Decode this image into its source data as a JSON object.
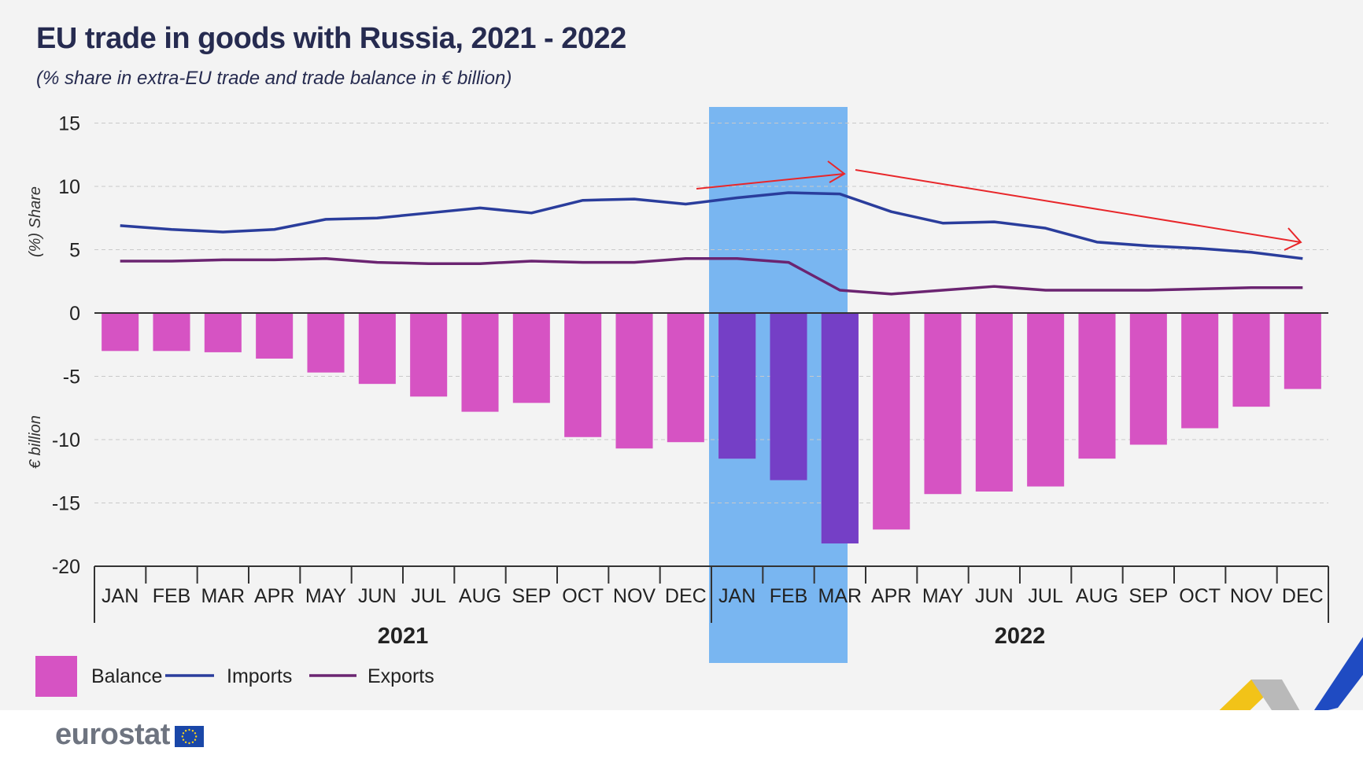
{
  "header": {
    "title": "EU trade in goods with Russia, 2021 - 2022",
    "subtitle": "(% share in extra-EU trade and trade balance in € billion)"
  },
  "footer": {
    "logo_text": "eurostat"
  },
  "chart_data": {
    "type": "bar+line",
    "categories": [
      "JAN",
      "FEB",
      "MAR",
      "APR",
      "MAY",
      "JUN",
      "JUL",
      "AUG",
      "SEP",
      "OCT",
      "NOV",
      "DEC",
      "JAN",
      "FEB",
      "MAR",
      "APR",
      "MAY",
      "JUN",
      "JUL",
      "AUG",
      "SEP",
      "OCT",
      "NOV",
      "DEC"
    ],
    "years": [
      "2021",
      "2022"
    ],
    "ylabel_top": "(%) Share",
    "ylabel_bottom": "€ billion",
    "ylim": [
      -20,
      15
    ],
    "yticks": [
      "15",
      "10",
      "5",
      "0",
      "-5",
      "-10",
      "-15",
      "-20"
    ],
    "grid": true,
    "highlight_range": [
      "JAN 2022",
      "MAR 2022"
    ],
    "series": [
      {
        "name": "Balance",
        "type": "bar",
        "color": "#d653c3",
        "values": [
          -3.0,
          -3.0,
          -3.1,
          -3.6,
          -4.7,
          -5.6,
          -6.6,
          -7.8,
          -7.1,
          -9.8,
          -10.7,
          -10.2,
          -11.5,
          -13.2,
          -18.2,
          -17.1,
          -14.3,
          -14.1,
          -13.7,
          -11.5,
          -10.4,
          -9.1,
          -7.4,
          -6.0
        ]
      },
      {
        "name": "Imports",
        "type": "line",
        "color": "#2a3d9c",
        "values": [
          6.9,
          6.6,
          6.4,
          6.6,
          7.4,
          7.5,
          7.9,
          8.3,
          7.9,
          8.9,
          9.0,
          8.6,
          9.1,
          9.5,
          9.4,
          8.0,
          7.1,
          7.2,
          6.7,
          5.6,
          5.3,
          5.1,
          4.8,
          4.3
        ]
      },
      {
        "name": "Exports",
        "type": "line",
        "color": "#6b2471",
        "values": [
          4.1,
          4.1,
          4.2,
          4.2,
          4.3,
          4.0,
          3.9,
          3.9,
          4.1,
          4.0,
          4.0,
          4.3,
          4.3,
          4.0,
          1.8,
          1.5,
          1.8,
          2.1,
          1.8,
          1.8,
          1.8,
          1.9,
          2.0,
          2.0
        ]
      }
    ],
    "legend": {
      "position": "bottom-left",
      "entries": [
        "Balance",
        "Imports",
        "Exports"
      ]
    },
    "colors": {
      "highlight": "#5ea8f0",
      "arrow": "#e8262a",
      "axis": "#333333",
      "grid": "#c9c9c9"
    }
  }
}
